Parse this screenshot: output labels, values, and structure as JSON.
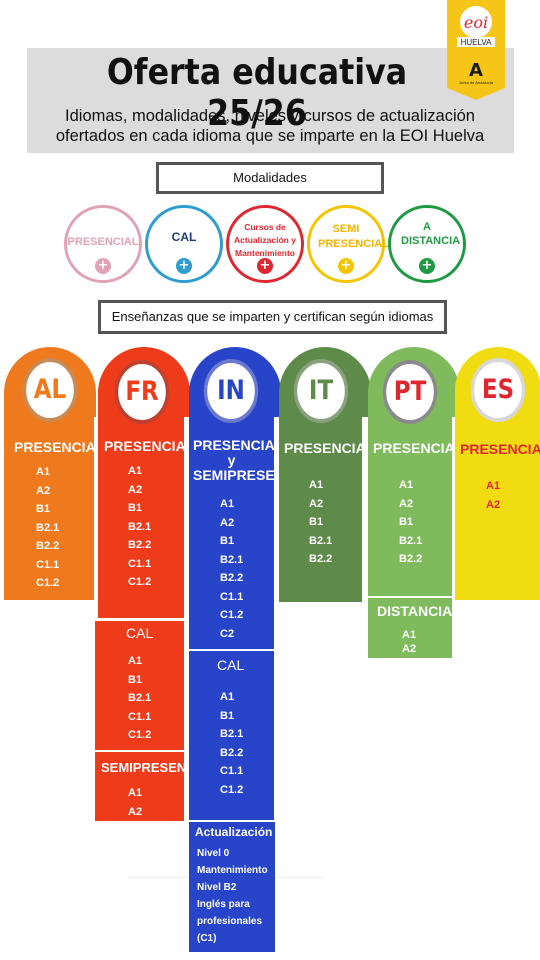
{
  "header": {
    "title": "Oferta educativa 25/26",
    "subtitle": "Idiomas, modalidades, niveles y cursos de actualización ofertados en cada idioma que se imparte en la EOI Huelva"
  },
  "logo": {
    "eoi_text": "eoi",
    "place": "HUELVA",
    "junta_letter": "A",
    "junta_text": "Junta de Andalucía"
  },
  "modalidades": {
    "label": "Modalidades",
    "items": [
      {
        "label": "PRESENCIAL",
        "color": "#e0a3b4",
        "text_color": "#e0a3b4"
      },
      {
        "label": "CAL",
        "color": "#2e9ccc",
        "text_color": "#1f3a7a"
      },
      {
        "label": "Cursos de Actualización y Mantenimiento",
        "color": "#e0262f",
        "text_color": "#e0262f"
      },
      {
        "label": "SEMI PRESENCIAL",
        "color": "#f5c400",
        "text_color": "#f5b400"
      },
      {
        "label": "A DISTANCIA",
        "color": "#1f9a43",
        "text_color": "#1f9a43"
      }
    ]
  },
  "ensenanzas": {
    "label": "Enseñanzas que se imparten y certifican según idiomas"
  },
  "languages": {
    "al": {
      "code": "AL",
      "color": "#ef7a1e",
      "ring": "#c98a55",
      "presencial": "PRESENCIAL",
      "levels": [
        "A1",
        "A2",
        "B1",
        "B2.1",
        "B2.2",
        "C1.1",
        "C1.2"
      ]
    },
    "fr": {
      "code": "FR",
      "color": "#ee3b1a",
      "ring": "#c04030",
      "presencial": "PRESENCIAL",
      "levels": [
        "A1",
        "A2",
        "B1",
        "B2.1",
        "B2.2",
        "C1.1",
        "C1.2"
      ],
      "cal_label": "CAL",
      "cal_levels": [
        "A1",
        "B1",
        "B2.1",
        "C1.1",
        "C1.2"
      ],
      "semi_label": "SEMIPRESEN.",
      "semi_levels": [
        "A1",
        "A2"
      ]
    },
    "in": {
      "code": "IN",
      "color": "#2844c8",
      "ring": "#6a7ad0",
      "presencial": "PRESENCIAL y SEMIPRESEN.",
      "levels": [
        "A1",
        "A2",
        "B1",
        "B2.1",
        "B2.2",
        "C1.1",
        "C1.2",
        "C2"
      ],
      "cal_label": "CAL",
      "cal_levels": [
        "A1",
        "B1",
        "B2.1",
        "B2.2",
        "C1.1",
        "C1.2"
      ],
      "act_label": "Actualización",
      "act_items": [
        "Nivel 0",
        "Mantenimiento",
        "Nivel B2",
        "Inglés para profesionales (C1)"
      ]
    },
    "it": {
      "code": "IT",
      "color": "#5e8a4a",
      "ring": "#8aa07e",
      "presencial": "PRESENCIAL",
      "levels": [
        "A1",
        "A2",
        "B1",
        "B2.1",
        "B2.2"
      ]
    },
    "pt": {
      "code": "PT",
      "color": "#7fba5c",
      "ring": "#8a8a8a",
      "presencial": "PRESENCIAL",
      "levels": [
        "A1",
        "A2",
        "B1",
        "B2.1",
        "B2.2"
      ],
      "dist_label": "DISTANCIA",
      "dist_levels": [
        "A1",
        "A2"
      ]
    },
    "es": {
      "code": "ES",
      "color": "#f1dc12",
      "ring": "#d8d8d8",
      "presencial": "PRESENCIAL",
      "levels": [
        "A1",
        "A2"
      ],
      "text_color": "#e0262f"
    }
  }
}
